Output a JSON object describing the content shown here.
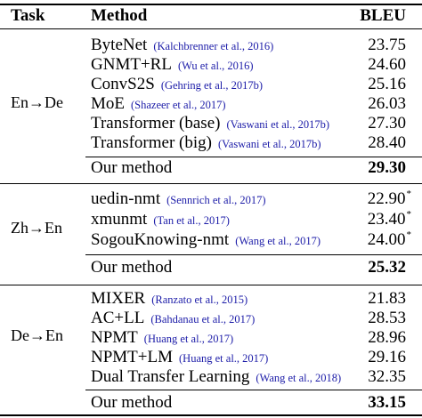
{
  "header": {
    "task": "Task",
    "method": "Method",
    "bleu": "BLEU"
  },
  "groups": [
    {
      "task": "En→De",
      "rows": [
        {
          "name": "ByteNet",
          "cite": "(Kalchbrenner et al., 2016)",
          "bleu": "23.75"
        },
        {
          "name": "GNMT+RL",
          "cite": "(Wu et al., 2016)",
          "bleu": "24.60"
        },
        {
          "name": "ConvS2S",
          "cite": "(Gehring et al., 2017b)",
          "bleu": "25.16"
        },
        {
          "name": "MoE",
          "cite": "(Shazeer et al., 2017)",
          "bleu": "26.03"
        },
        {
          "name": "Transformer (base)",
          "cite": "(Vaswani et al., 2017b)",
          "bleu": "27.30"
        },
        {
          "name": "Transformer (big)",
          "cite": "(Vaswani et al., 2017b)",
          "bleu": "28.40"
        }
      ],
      "ours": {
        "name": "Our method",
        "bleu": "29.30"
      }
    },
    {
      "task": "Zh→En",
      "rows": [
        {
          "name": "uedin-nmt",
          "cite": "(Sennrich et al., 2017)",
          "bleu": "22.90",
          "mark": "*"
        },
        {
          "name": "xmunmt",
          "cite": "(Tan et al., 2017)",
          "bleu": "23.40",
          "mark": "*"
        },
        {
          "name": "SogouKnowing-nmt",
          "cite": "(Wang et al., 2017)",
          "bleu": "24.00",
          "mark": "*"
        }
      ],
      "ours": {
        "name": "Our method",
        "bleu": "25.32"
      }
    },
    {
      "task": "De→En",
      "rows": [
        {
          "name": "MIXER",
          "cite": "(Ranzato et al., 2015)",
          "bleu": "21.83"
        },
        {
          "name": "AC+LL",
          "cite": "(Bahdanau et al., 2017)",
          "bleu": "28.53"
        },
        {
          "name": "NPMT",
          "cite": "(Huang et al., 2017)",
          "bleu": "28.96"
        },
        {
          "name": "NPMT+LM",
          "cite": "(Huang et al., 2017)",
          "bleu": "29.16"
        },
        {
          "name": "Dual Transfer Learning",
          "cite": "(Wang et al., 2018)",
          "bleu": "32.35"
        }
      ],
      "ours": {
        "name": "Our method",
        "bleu": "33.15"
      }
    }
  ]
}
